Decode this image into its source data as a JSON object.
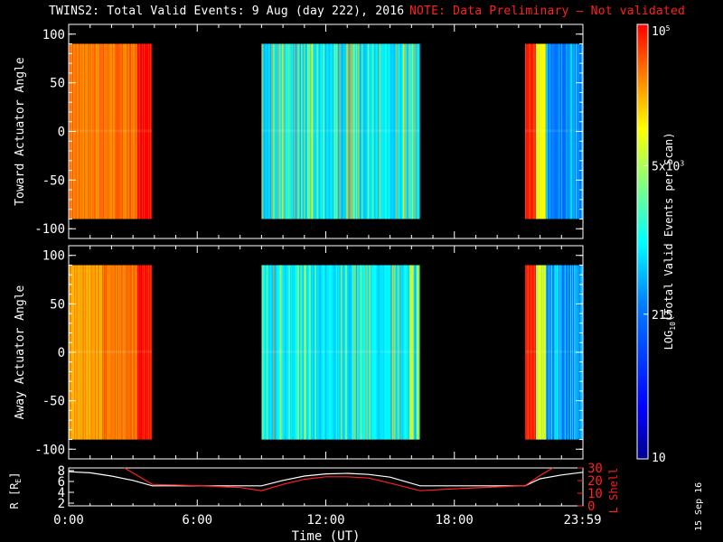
{
  "header": {
    "title": "TWINS2: Total Valid Events:  9 Aug (day 222), 2016",
    "note": "NOTE: Data Preliminary — Not validated"
  },
  "stamp": "15 Sep 16",
  "colors": {
    "note": "#ff2020",
    "rshell": "#ff2020",
    "rline": "#ffffff"
  },
  "chart_data": [
    {
      "type": "heatmap",
      "panel": "top",
      "ylabel": "Toward Actuator Angle",
      "ylim": [
        -110,
        110
      ],
      "yticks": [
        100,
        50,
        0,
        -50,
        -100
      ],
      "xlim": [
        0,
        24
      ],
      "angle_range": [
        -90,
        90
      ],
      "segments": [
        {
          "start": 0.0,
          "end": 3.9,
          "level": "high"
        },
        {
          "start": 9.0,
          "end": 16.4,
          "level": "low"
        },
        {
          "start": 21.3,
          "end": 24.0,
          "level": "mixed"
        }
      ]
    },
    {
      "type": "heatmap",
      "panel": "bottom",
      "ylabel": "Away Actuator Angle",
      "ylim": [
        -110,
        110
      ],
      "yticks": [
        100,
        50,
        0,
        -50,
        -100
      ],
      "xlim": [
        0,
        24
      ],
      "angle_range": [
        -90,
        90
      ],
      "segments": [
        {
          "start": 0.0,
          "end": 3.9,
          "level": "high"
        },
        {
          "start": 9.0,
          "end": 16.4,
          "level": "low"
        },
        {
          "start": 21.3,
          "end": 24.0,
          "level": "mixed"
        }
      ]
    },
    {
      "type": "line",
      "panel": "ephemeris",
      "xlabel": "Time (UT)",
      "xlim": [
        0,
        24
      ],
      "xticks": [
        "0:00",
        "6:00",
        "12:00",
        "18:00",
        "23:59"
      ],
      "left_axis": {
        "label": "R [R",
        "label_sub": "E",
        "label_end": "]",
        "ylim": [
          1.5,
          8.5
        ],
        "ticks": [
          8,
          6,
          4,
          2
        ]
      },
      "right_axis": {
        "label": "L Shell",
        "ylim": [
          0,
          30
        ],
        "ticks": [
          30,
          20,
          10,
          0
        ]
      },
      "series": [
        {
          "axis": "left",
          "color": "white",
          "x": [
            0,
            1,
            2,
            3,
            3.9,
            5,
            6,
            7,
            8,
            9,
            10,
            11,
            12,
            13,
            14,
            15,
            16.4,
            17,
            18,
            19,
            20,
            21.3,
            22,
            23,
            24
          ],
          "y": [
            7.8,
            7.6,
            7.0,
            6.2,
            5.2,
            5.2,
            5.2,
            5.2,
            5.2,
            5.2,
            6.2,
            7.0,
            7.4,
            7.5,
            7.3,
            6.8,
            5.2,
            5.2,
            5.2,
            5.2,
            5.2,
            5.2,
            6.5,
            7.2,
            7.7
          ]
        },
        {
          "axis": "right",
          "color": "red",
          "x": [
            2.6,
            3.2,
            3.9,
            6,
            8,
            9,
            10,
            11,
            12,
            13,
            14,
            15,
            16.4,
            18,
            20,
            21.3,
            22,
            22.6
          ],
          "y": [
            30,
            24,
            17,
            16,
            14.5,
            12,
            17,
            21,
            23,
            23,
            22,
            18,
            12,
            13.5,
            15,
            16,
            24,
            30
          ]
        }
      ]
    }
  ],
  "colorbar": {
    "label": "LOG",
    "label_sub": "10",
    "label_rest": "(Total Valid  Events per Scan)",
    "ticks": [
      {
        "label": "10",
        "value": 10
      },
      {
        "label": "215",
        "value": 215
      },
      {
        "label": "5x10",
        "sup": "3",
        "value": 5000
      },
      {
        "label": "10",
        "sup": "5",
        "value": 100000
      }
    ],
    "range": [
      10,
      100000
    ]
  }
}
